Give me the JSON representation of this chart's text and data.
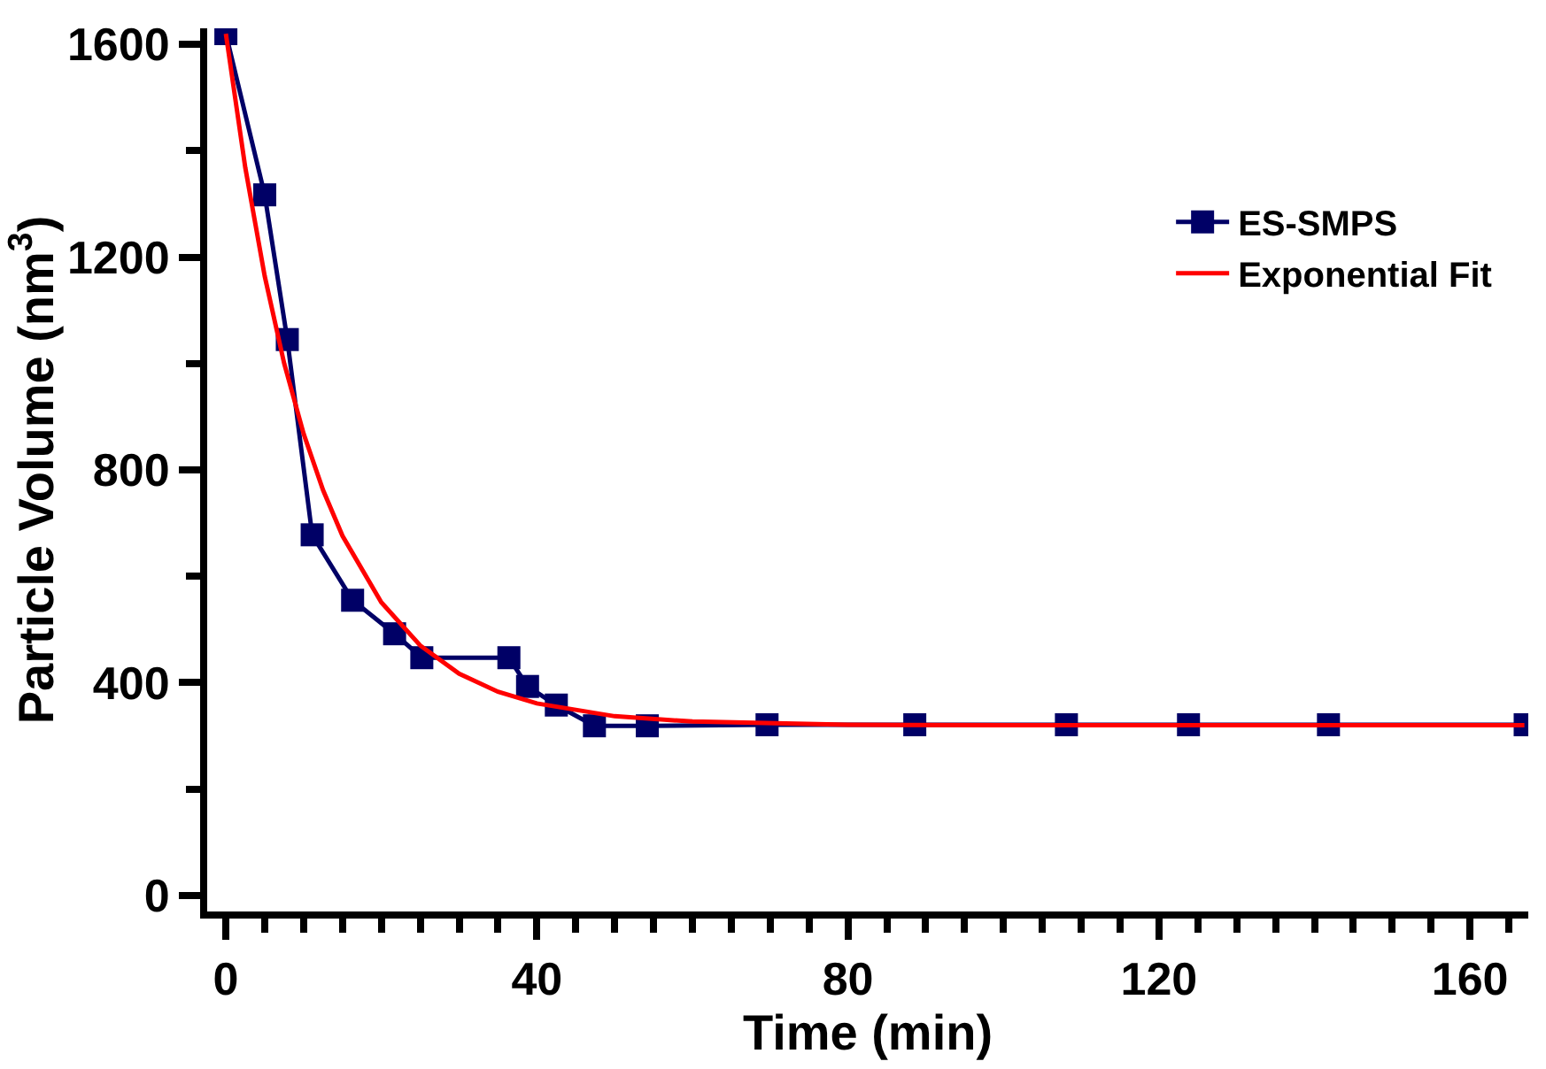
{
  "chart_data": {
    "type": "line",
    "xlabel": "Time (min)",
    "ylabel": "Particle Volume (nm$^{3}$)",
    "xlim": [
      -2.4,
      167.5
    ],
    "ylim": [
      -30,
      1630
    ],
    "xticks": [
      0,
      {
        "value": 5,
        "label": null
      },
      {
        "value": 10,
        "label": null
      },
      {
        "value": 15,
        "label": null
      },
      {
        "value": 20,
        "label": null
      },
      {
        "value": 25,
        "label": null
      },
      {
        "value": 30,
        "label": null
      },
      {
        "value": 35,
        "label": null
      },
      40,
      {
        "value": 45,
        "label": null
      },
      {
        "value": 50,
        "label": null
      },
      {
        "value": 55,
        "label": null
      },
      {
        "value": 60,
        "label": null
      },
      {
        "value": 65,
        "label": null
      },
      {
        "value": 70,
        "label": null
      },
      {
        "value": 75,
        "label": null
      },
      80,
      {
        "value": 85,
        "label": null
      },
      {
        "value": 90,
        "label": null
      },
      {
        "value": 95,
        "label": null
      },
      {
        "value": 100,
        "label": null
      },
      {
        "value": 105,
        "label": null
      },
      {
        "value": 110,
        "label": null
      },
      {
        "value": 115,
        "label": null
      },
      120,
      {
        "value": 125,
        "label": null
      },
      {
        "value": 130,
        "label": null
      },
      {
        "value": 135,
        "label": null
      },
      {
        "value": 140,
        "label": null
      },
      {
        "value": 145,
        "label": null
      },
      {
        "value": 150,
        "label": null
      },
      {
        "value": 155,
        "label": null
      },
      160,
      {
        "value": 165,
        "label": null
      }
    ],
    "yticks": [
      0,
      {
        "value": 200,
        "label": null
      },
      400,
      {
        "value": 600,
        "label": null
      },
      800,
      {
        "value": 1000,
        "label": null
      },
      1200,
      {
        "value": 1400,
        "label": null
      },
      1600
    ],
    "grid": false,
    "legend": "top right",
    "series": [
      {
        "name": "ES-SMPS",
        "color": "#000066",
        "marker": "square",
        "x": [
          0,
          5,
          7.9,
          11.1,
          16.3,
          21.7,
          25.2,
          36.4,
          38.8,
          42.5,
          47.4,
          54.2,
          69.6,
          88.6,
          108.1,
          123.8,
          141.8,
          167.1
        ],
        "values": [
          1620,
          1317,
          1045,
          678,
          555,
          492,
          447,
          447,
          393,
          358,
          319,
          319,
          321,
          321,
          321,
          321,
          321,
          321
        ]
      },
      {
        "name": "Exponential Fit",
        "color": "#ff0000",
        "marker": "none",
        "x": [
          0,
          2.5,
          5,
          7.5,
          10,
          12.5,
          15,
          20,
          25,
          30,
          35,
          40,
          50,
          60,
          80,
          100,
          130,
          167
        ],
        "values": [
          1620,
          1368,
          1164,
          1000,
          868,
          762,
          676,
          551,
          470,
          417,
          383,
          361,
          337,
          327,
          321,
          320,
          320,
          320
        ]
      }
    ]
  }
}
